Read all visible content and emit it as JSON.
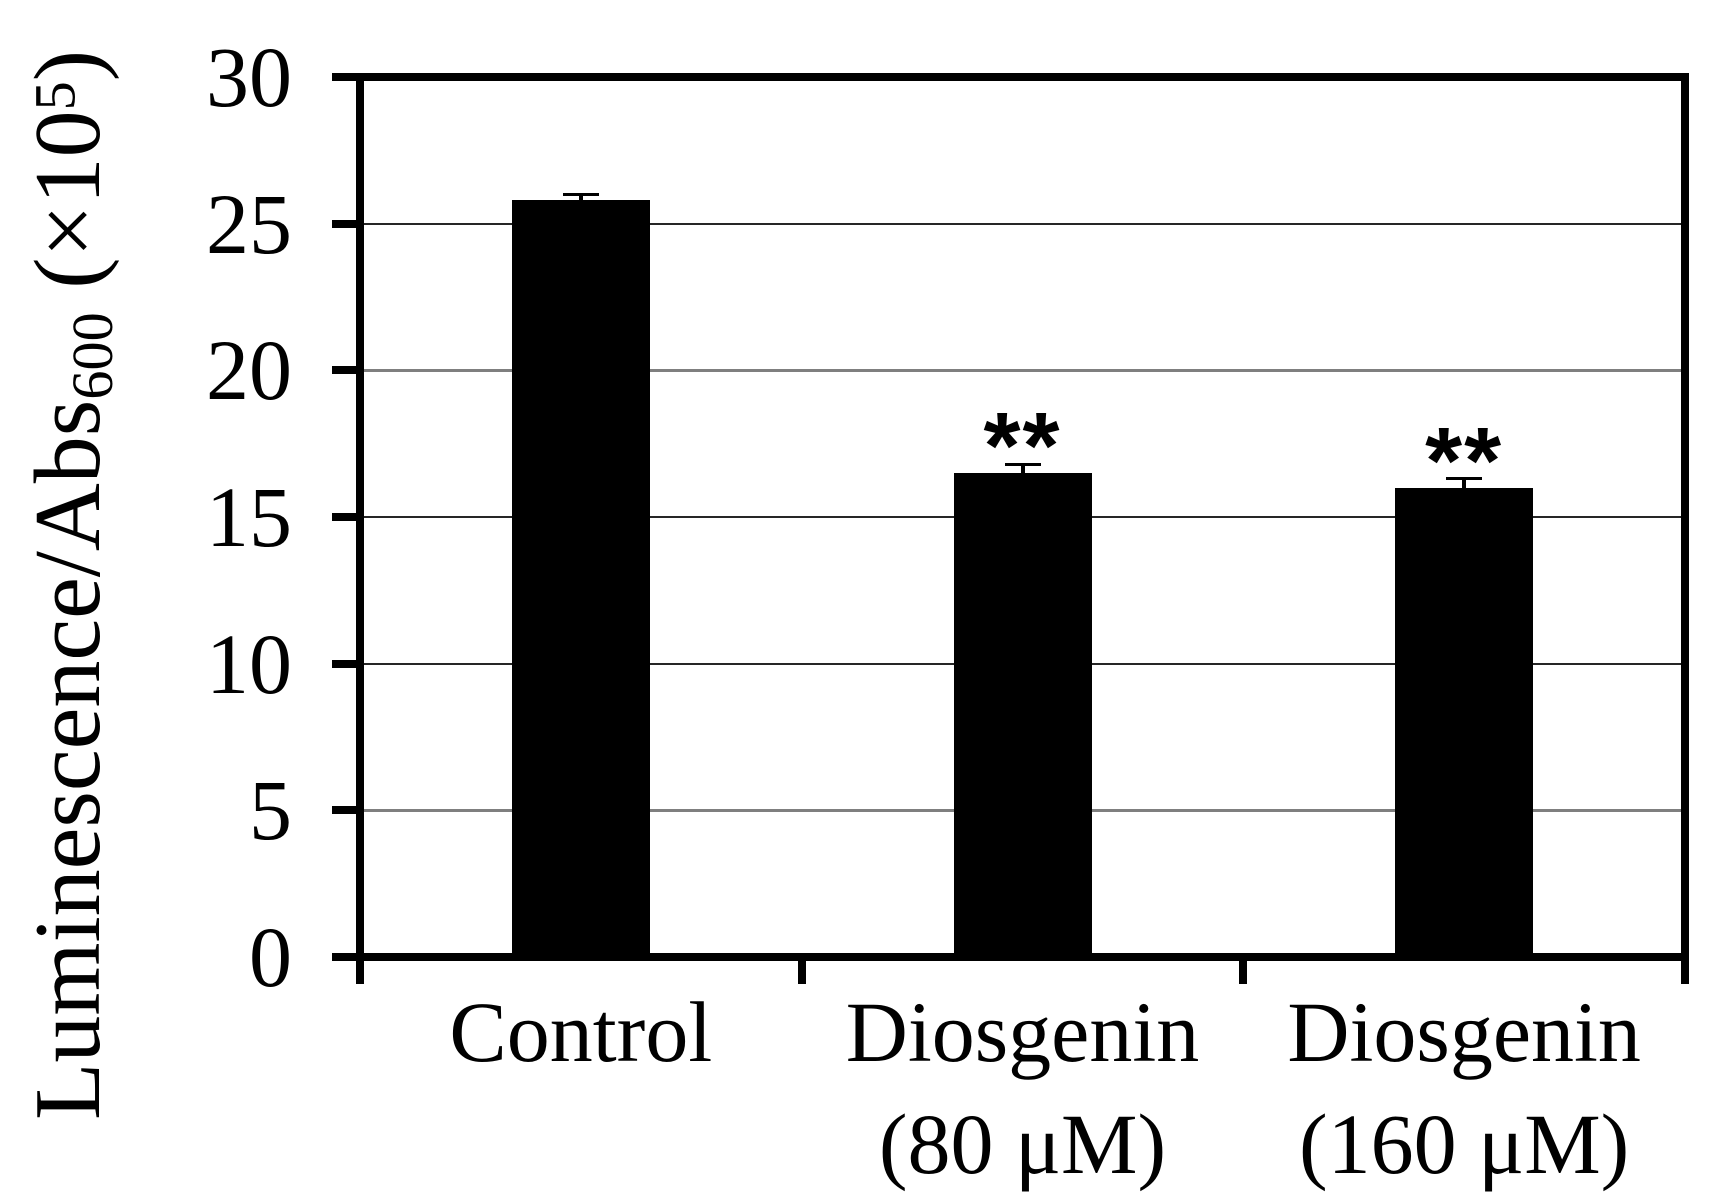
{
  "chart_data": {
    "type": "bar",
    "title": "",
    "ylabel": "Luminescence/Abs600 (×10^5)",
    "ylabel_parts": {
      "prefix": "Luminescence/Abs",
      "subscript": "600",
      "mid": " (×10",
      "superscript": "5",
      "suffix": ")"
    },
    "xlabel": "",
    "categories": [
      "Control",
      "Diosgenin (80 μM)",
      "Diosgenin (160 μM)"
    ],
    "category_label_lines": [
      [
        "Control"
      ],
      [
        "Diosgenin",
        "(80 μM)"
      ],
      [
        "Diosgenin",
        "(160 μM)"
      ]
    ],
    "values": [
      25.8,
      16.5,
      16.0
    ],
    "errors": [
      0.2,
      0.3,
      0.3
    ],
    "significance": [
      "",
      "**",
      "**"
    ],
    "yticks": [
      0,
      5,
      10,
      15,
      20,
      25,
      30
    ],
    "ylim": [
      0,
      30
    ],
    "gridline_levels": [
      5,
      10,
      15,
      20,
      25
    ],
    "soft_gridline_levels": [
      5,
      20
    ],
    "legend_position": "none",
    "bar_color": "#000000",
    "axis_color": "#000000",
    "grid_color": "#262626",
    "soft_grid_color": "#7f7f7f",
    "background_color": "#ffffff"
  }
}
